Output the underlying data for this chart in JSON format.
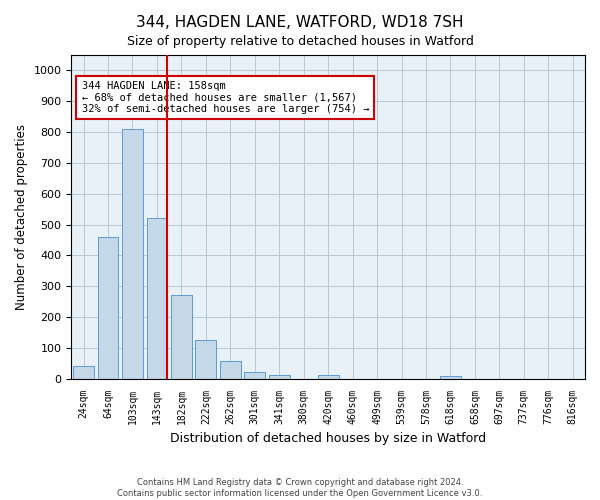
{
  "title": "344, HAGDEN LANE, WATFORD, WD18 7SH",
  "subtitle": "Size of property relative to detached houses in Watford",
  "xlabel": "Distribution of detached houses by size in Watford",
  "ylabel": "Number of detached properties",
  "categories": [
    "24sqm",
    "64sqm",
    "103sqm",
    "143sqm",
    "182sqm",
    "222sqm",
    "262sqm",
    "301sqm",
    "341sqm",
    "380sqm",
    "420sqm",
    "460sqm",
    "499sqm",
    "539sqm",
    "578sqm",
    "618sqm",
    "658sqm",
    "697sqm",
    "737sqm",
    "776sqm",
    "816sqm"
  ],
  "values": [
    42,
    460,
    810,
    520,
    270,
    125,
    57,
    21,
    12,
    0,
    12,
    0,
    0,
    0,
    0,
    9,
    0,
    0,
    0,
    0,
    0
  ],
  "bar_color": "#c5d8e8",
  "bar_edge_color": "#5b9bd5",
  "vline_xidx": 3,
  "vline_color": "#cc0000",
  "annotation_text": "344 HAGDEN LANE: 158sqm\n← 68% of detached houses are smaller (1,567)\n32% of semi-detached houses are larger (754) →",
  "annotation_box_edge_color": "#cc0000",
  "ylim": [
    0,
    1050
  ],
  "yticks": [
    0,
    100,
    200,
    300,
    400,
    500,
    600,
    700,
    800,
    900,
    1000
  ],
  "axes_bg_color": "#e8f0f8",
  "background_color": "#ffffff",
  "grid_color": "#b8c8d8",
  "footer_line1": "Contains HM Land Registry data © Crown copyright and database right 2024.",
  "footer_line2": "Contains public sector information licensed under the Open Government Licence v3.0."
}
